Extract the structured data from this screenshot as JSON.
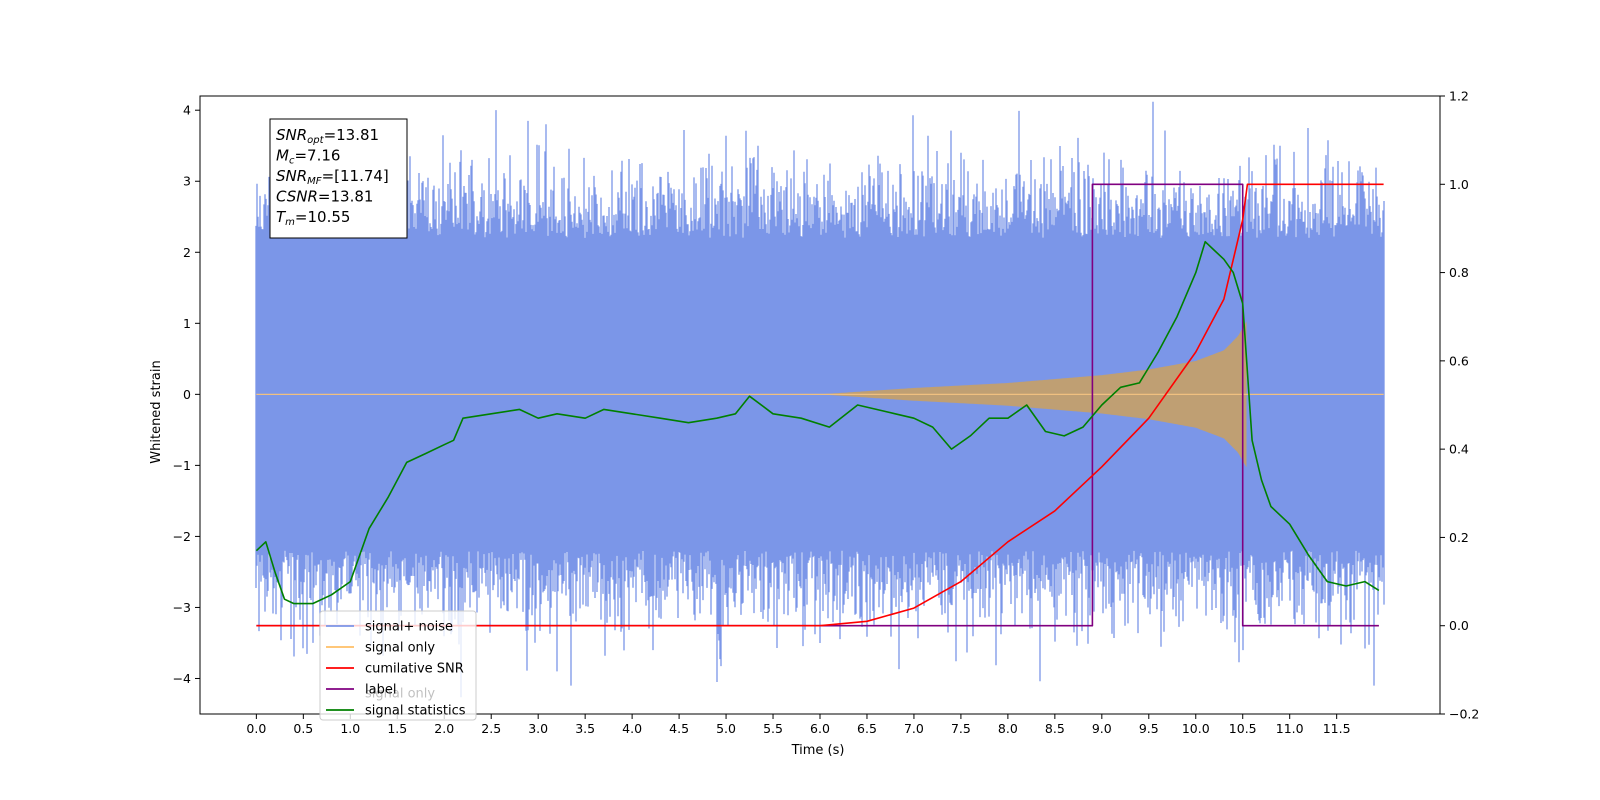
{
  "chart_data": {
    "type": "line",
    "xlabel": "Time (s)",
    "ylabel": "Whitened strain",
    "xlim": [
      -0.6,
      12.6
    ],
    "ylim": [
      -4.5,
      4.2
    ],
    "y2lim": [
      -0.2,
      1.2
    ],
    "xticks": [
      "0.0",
      "0.5",
      "1.0",
      "1.5",
      "2.0",
      "2.5",
      "3.0",
      "3.5",
      "4.0",
      "4.5",
      "5.0",
      "5.5",
      "6.0",
      "6.5",
      "7.0",
      "7.5",
      "8.0",
      "8.5",
      "9.0",
      "9.5",
      "10.0",
      "10.5",
      "11.0",
      "11.5"
    ],
    "yticks": [
      "4",
      "3",
      "2",
      "1",
      "0",
      "−1",
      "−2",
      "−3",
      "−4"
    ],
    "y2ticks": [
      "1.2",
      "1.0",
      "0.8",
      "0.6",
      "0.4",
      "0.2",
      "0.0",
      "−0.2"
    ],
    "legend": {
      "placement": "lower-left",
      "entries": [
        "signal+ noise",
        "signal only",
        "cumilative SNR",
        "label",
        "signal statistics"
      ],
      "overlap_text": "signal only"
    },
    "annotation": {
      "lines": [
        {
          "base": "SNR",
          "sub": "opt",
          "value": "=13.81"
        },
        {
          "base": "M",
          "sub": "c",
          "value": "=7.16"
        },
        {
          "base": "SNR",
          "sub": "MF",
          "value": "=[11.74]"
        },
        {
          "base": "CSNR",
          "sub": "",
          "value": "=13.81"
        },
        {
          "base": "T",
          "sub": "m",
          "value": "=10.55"
        }
      ]
    },
    "series": [
      {
        "name": "signal+ noise",
        "axis": "left",
        "color": "#7b96e8",
        "kind": "noise-band",
        "x_range": [
          0.0,
          12.0
        ],
        "typical_envelope": [
          -2.2,
          2.2
        ],
        "extreme_peaks": [
          {
            "x": 0.02,
            "y": 2.5
          },
          {
            "x": 2.3,
            "y": 3.3
          },
          {
            "x": 3.2,
            "y": -3.9
          },
          {
            "x": 3.35,
            "y": -4.1
          },
          {
            "x": 4.9,
            "y": -4.05
          },
          {
            "x": 6.0,
            "y": -3.5
          },
          {
            "x": 7.5,
            "y": 3.4
          },
          {
            "x": 9.2,
            "y": 3.3
          },
          {
            "x": 10.5,
            "y": -3.6
          },
          {
            "x": 10.9,
            "y": 3.5
          },
          {
            "x": 11.2,
            "y": 3.75
          },
          {
            "x": 11.9,
            "y": -4.1
          }
        ]
      },
      {
        "name": "signal only",
        "axis": "left",
        "color": "#bf9f73",
        "kind": "chirp-envelope",
        "x_range": [
          0.0,
          12.0
        ],
        "envelope": [
          {
            "x": 6.0,
            "y": 0.0
          },
          {
            "x": 7.0,
            "y": 0.09
          },
          {
            "x": 8.0,
            "y": 0.16
          },
          {
            "x": 9.0,
            "y": 0.27
          },
          {
            "x": 9.5,
            "y": 0.35
          },
          {
            "x": 10.0,
            "y": 0.47
          },
          {
            "x": 10.3,
            "y": 0.62
          },
          {
            "x": 10.45,
            "y": 0.82
          },
          {
            "x": 10.55,
            "y": 1.05
          },
          {
            "x": 10.57,
            "y": 0.0
          },
          {
            "x": 12.0,
            "y": 0.0
          }
        ]
      },
      {
        "name": "cumilative SNR",
        "axis": "right",
        "color": "#ff0000",
        "x": [
          0.0,
          6.0,
          6.5,
          7.0,
          7.5,
          8.0,
          8.5,
          9.0,
          9.5,
          10.0,
          10.3,
          10.5,
          10.55,
          11.0,
          11.5,
          12.0
        ],
        "y": [
          0.0,
          0.0,
          0.01,
          0.04,
          0.1,
          0.19,
          0.26,
          0.36,
          0.47,
          0.62,
          0.74,
          0.92,
          1.0,
          1.0,
          1.0,
          1.0
        ]
      },
      {
        "name": "label",
        "axis": "right",
        "color": "#800080",
        "x": [
          0.0,
          8.9,
          8.9,
          10.5,
          10.5,
          11.95
        ],
        "y": [
          0.0,
          0.0,
          1.0,
          1.0,
          0.0,
          0.0
        ]
      },
      {
        "name": "signal statistics",
        "axis": "right",
        "color": "#008000",
        "x": [
          0.0,
          0.1,
          0.2,
          0.3,
          0.4,
          0.6,
          0.8,
          1.0,
          1.2,
          1.4,
          1.6,
          1.8,
          2.0,
          2.1,
          2.2,
          2.5,
          2.8,
          3.0,
          3.2,
          3.5,
          3.7,
          4.0,
          4.3,
          4.6,
          4.9,
          5.1,
          5.25,
          5.5,
          5.8,
          6.1,
          6.4,
          6.6,
          6.8,
          7.0,
          7.2,
          7.4,
          7.6,
          7.8,
          8.0,
          8.2,
          8.4,
          8.6,
          8.8,
          9.0,
          9.2,
          9.4,
          9.6,
          9.8,
          10.0,
          10.1,
          10.2,
          10.3,
          10.4,
          10.5,
          10.6,
          10.7,
          10.8,
          11.0,
          11.2,
          11.4,
          11.6,
          11.8,
          11.95
        ],
        "y": [
          0.17,
          0.19,
          0.12,
          0.06,
          0.05,
          0.05,
          0.07,
          0.1,
          0.22,
          0.29,
          0.37,
          0.39,
          0.41,
          0.42,
          0.47,
          0.48,
          0.49,
          0.47,
          0.48,
          0.47,
          0.49,
          0.48,
          0.47,
          0.46,
          0.47,
          0.48,
          0.52,
          0.48,
          0.47,
          0.45,
          0.5,
          0.49,
          0.48,
          0.47,
          0.45,
          0.4,
          0.43,
          0.47,
          0.47,
          0.5,
          0.44,
          0.43,
          0.45,
          0.5,
          0.54,
          0.55,
          0.62,
          0.7,
          0.8,
          0.87,
          0.85,
          0.83,
          0.8,
          0.73,
          0.42,
          0.33,
          0.27,
          0.23,
          0.16,
          0.1,
          0.09,
          0.1,
          0.08
        ]
      }
    ]
  }
}
